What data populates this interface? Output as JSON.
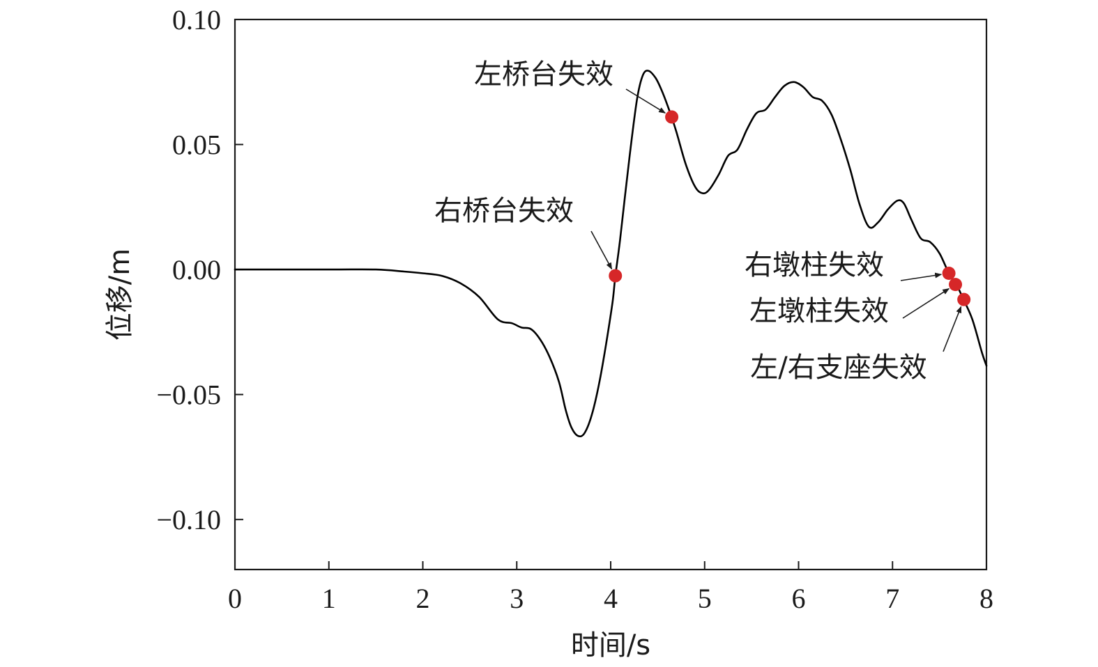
{
  "chart_data": {
    "type": "line",
    "xlabel": "时间/s",
    "ylabel": "位移/m",
    "xlim": [
      0,
      8
    ],
    "ylim": [
      -0.12,
      0.1
    ],
    "x_ticks": [
      "0",
      "1",
      "2",
      "3",
      "4",
      "5",
      "6",
      "7",
      "8"
    ],
    "y_ticks": [
      "0.10",
      "0.05",
      "0.00",
      "−0.05",
      "−0.10"
    ],
    "x_tick_values": [
      0,
      1,
      2,
      3,
      4,
      5,
      6,
      7,
      8
    ],
    "y_tick_values": [
      0.1,
      0.05,
      0.0,
      -0.05,
      -0.1
    ],
    "grid": false,
    "series": [
      {
        "color": "#000000",
        "points": [
          [
            0.0,
            0.0
          ],
          [
            1.0,
            0.0
          ],
          [
            1.5,
            0.0
          ],
          [
            1.8,
            -0.0008
          ],
          [
            2.0,
            -0.0015
          ],
          [
            2.2,
            -0.0025
          ],
          [
            2.4,
            -0.0055
          ],
          [
            2.6,
            -0.011
          ],
          [
            2.8,
            -0.02
          ],
          [
            2.95,
            -0.0215
          ],
          [
            3.05,
            -0.0232
          ],
          [
            3.15,
            -0.0238
          ],
          [
            3.25,
            -0.028
          ],
          [
            3.35,
            -0.035
          ],
          [
            3.45,
            -0.045
          ],
          [
            3.52,
            -0.056
          ],
          [
            3.58,
            -0.063
          ],
          [
            3.65,
            -0.0665
          ],
          [
            3.72,
            -0.0655
          ],
          [
            3.8,
            -0.058
          ],
          [
            3.88,
            -0.045
          ],
          [
            3.95,
            -0.03
          ],
          [
            4.02,
            -0.013
          ],
          [
            4.05,
            -0.0025
          ],
          [
            4.1,
            0.012
          ],
          [
            4.2,
            0.045
          ],
          [
            4.28,
            0.068
          ],
          [
            4.34,
            0.0775
          ],
          [
            4.4,
            0.0795
          ],
          [
            4.48,
            0.0765
          ],
          [
            4.55,
            0.071
          ],
          [
            4.63,
            0.063
          ],
          [
            4.7,
            0.055
          ],
          [
            4.8,
            0.042
          ],
          [
            4.9,
            0.033
          ],
          [
            4.98,
            0.0305
          ],
          [
            5.05,
            0.032
          ],
          [
            5.15,
            0.038
          ],
          [
            5.25,
            0.0455
          ],
          [
            5.35,
            0.048
          ],
          [
            5.45,
            0.056
          ],
          [
            5.55,
            0.0625
          ],
          [
            5.65,
            0.064
          ],
          [
            5.75,
            0.069
          ],
          [
            5.85,
            0.0735
          ],
          [
            5.95,
            0.075
          ],
          [
            6.05,
            0.073
          ],
          [
            6.15,
            0.069
          ],
          [
            6.25,
            0.0675
          ],
          [
            6.35,
            0.062
          ],
          [
            6.45,
            0.052
          ],
          [
            6.55,
            0.04
          ],
          [
            6.65,
            0.026
          ],
          [
            6.75,
            0.017
          ],
          [
            6.85,
            0.019
          ],
          [
            6.95,
            0.024
          ],
          [
            7.05,
            0.0275
          ],
          [
            7.12,
            0.0265
          ],
          [
            7.2,
            0.02
          ],
          [
            7.3,
            0.0125
          ],
          [
            7.4,
            0.011
          ],
          [
            7.5,
            0.0065
          ],
          [
            7.6,
            -0.0015
          ],
          [
            7.68,
            -0.006
          ],
          [
            7.75,
            -0.0115
          ],
          [
            7.85,
            -0.02
          ],
          [
            7.95,
            -0.033
          ],
          [
            8.0,
            -0.0385
          ]
        ]
      }
    ],
    "markers": [
      {
        "label": "右桥台失效",
        "x": 4.05,
        "y": -0.0025
      },
      {
        "label": "左桥台失效",
        "x": 4.65,
        "y": 0.061
      },
      {
        "label": "右墩柱失效",
        "x": 7.6,
        "y": -0.0015
      },
      {
        "label": "左墩柱失效",
        "x": 7.67,
        "y": -0.006
      },
      {
        "label": "左/右支座失效",
        "x": 7.76,
        "y": -0.012
      }
    ],
    "marker_color": "#d62728"
  }
}
